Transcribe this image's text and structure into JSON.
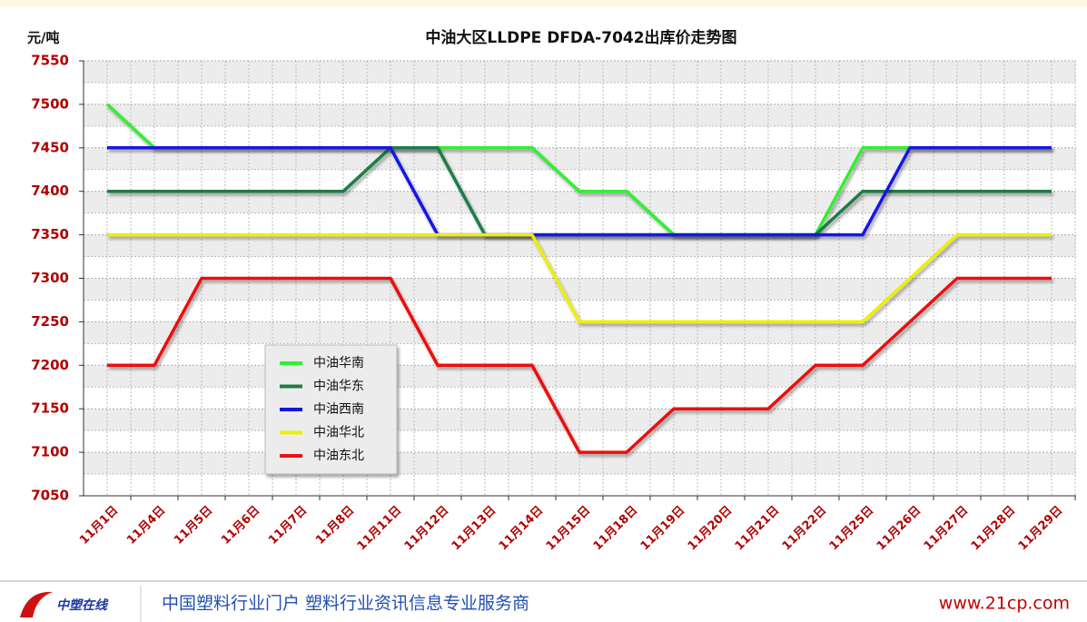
{
  "chart_data": {
    "type": "line",
    "title": "中油大区LLDPE DFDA-7042出库价走势图",
    "y_label": "元/吨",
    "categories": [
      "11月1日",
      "11月4日",
      "11月5日",
      "11月6日",
      "11月7日",
      "11月8日",
      "11月11日",
      "11月12日",
      "11月13日",
      "11月14日",
      "11月15日",
      "11月18日",
      "11月19日",
      "11月20日",
      "11月21日",
      "11月22日",
      "11月25日",
      "11月26日",
      "11月27日",
      "11月28日",
      "11月29日"
    ],
    "series": [
      {
        "name": "中油华南",
        "color": "#33ee33",
        "values": [
          7500,
          7450,
          7450,
          7450,
          7450,
          7450,
          7450,
          7450,
          7450,
          7450,
          7400,
          7400,
          7350,
          7350,
          7350,
          7350,
          7450,
          7450,
          7450,
          7450,
          7450
        ]
      },
      {
        "name": "中油华东",
        "color": "#1e7d46",
        "values": [
          7400,
          7400,
          7400,
          7400,
          7400,
          7400,
          7450,
          7450,
          7350,
          7350,
          7350,
          7350,
          7350,
          7350,
          7350,
          7350,
          7400,
          7400,
          7400,
          7400,
          7400
        ]
      },
      {
        "name": "中油西南",
        "color": "#1515e6",
        "values": [
          7450,
          7450,
          7450,
          7450,
          7450,
          7450,
          7450,
          7350,
          7350,
          7350,
          7350,
          7350,
          7350,
          7350,
          7350,
          7350,
          7350,
          7450,
          7450,
          7450,
          7450
        ]
      },
      {
        "name": "中油华北",
        "color": "#eeee00",
        "values": [
          7350,
          7350,
          7350,
          7350,
          7350,
          7350,
          7350,
          7350,
          7350,
          7350,
          7250,
          7250,
          7250,
          7250,
          7250,
          7250,
          7250,
          7300,
          7350,
          7350,
          7350
        ]
      },
      {
        "name": "中油东北",
        "color": "#ee1111",
        "values": [
          7200,
          7200,
          7300,
          7300,
          7300,
          7300,
          7300,
          7200,
          7200,
          7200,
          7100,
          7100,
          7150,
          7150,
          7150,
          7200,
          7200,
          7250,
          7300,
          7300,
          7300
        ]
      }
    ],
    "ylim": [
      7050,
      7550
    ],
    "yticks": [
      7050,
      7100,
      7150,
      7200,
      7250,
      7300,
      7350,
      7400,
      7450,
      7500,
      7550
    ],
    "grid": true
  },
  "footer": {
    "logo": "中塑在线",
    "slogan": "中国塑料行业门户 塑料行业资讯信息专业服务商",
    "url": "www.21cp.com"
  }
}
